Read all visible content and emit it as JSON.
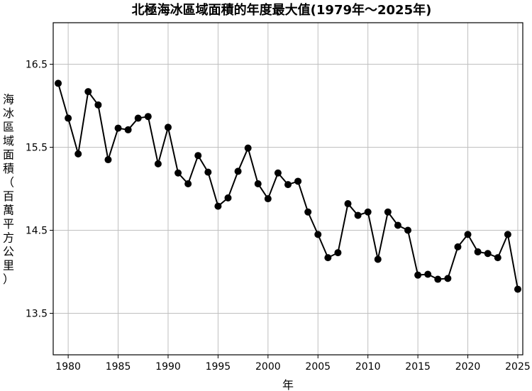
{
  "chart_data": {
    "type": "line",
    "title": "北極海冰區域面積的年度最大值(1979年～2025年)",
    "xlabel": "年",
    "ylabel": "海冰區域面積（百萬平方公里）",
    "x": [
      1979,
      1980,
      1981,
      1982,
      1983,
      1984,
      1985,
      1986,
      1987,
      1988,
      1989,
      1990,
      1991,
      1992,
      1993,
      1994,
      1995,
      1996,
      1997,
      1998,
      1999,
      2000,
      2001,
      2002,
      2003,
      2004,
      2005,
      2006,
      2007,
      2008,
      2009,
      2010,
      2011,
      2012,
      2013,
      2014,
      2015,
      2016,
      2017,
      2018,
      2019,
      2020,
      2021,
      2022,
      2023,
      2024,
      2025
    ],
    "series": [
      {
        "values": [
          16.27,
          15.85,
          15.42,
          16.17,
          16.01,
          15.35,
          15.73,
          15.71,
          15.85,
          15.87,
          15.3,
          15.74,
          15.19,
          15.06,
          15.4,
          15.2,
          14.79,
          14.89,
          15.21,
          15.49,
          15.06,
          14.88,
          15.19,
          15.05,
          15.09,
          14.72,
          14.45,
          14.17,
          14.23,
          14.82,
          14.68,
          14.72,
          14.15,
          14.72,
          14.56,
          14.5,
          13.96,
          13.97,
          13.91,
          13.92,
          14.3,
          14.45,
          14.24,
          14.22,
          14.17,
          14.45,
          13.79
        ],
        "color": "#000000"
      }
    ],
    "xlim": [
      1978.5,
      2025.5
    ],
    "ylim": [
      13.0,
      17.0
    ],
    "xticks": [
      1980,
      1985,
      1990,
      1995,
      2000,
      2005,
      2010,
      2015,
      2020,
      2025
    ],
    "yticks": [
      13.5,
      14.5,
      15.5,
      16.5
    ],
    "grid": true,
    "colors": {
      "line": "#000000",
      "marker": "#000000",
      "grid": "#bfbfbf",
      "axes": "#000000"
    }
  }
}
